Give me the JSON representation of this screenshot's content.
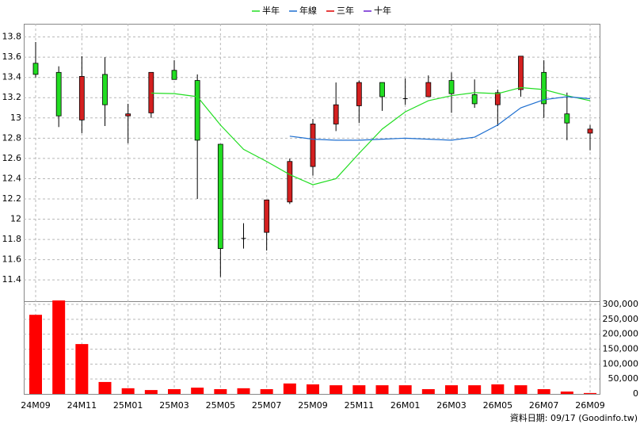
{
  "chart_data": [
    {
      "type": "candlestick",
      "legend": "top",
      "categories": [
        "24M09",
        null,
        "24M11",
        null,
        "25M01",
        null,
        "25M03",
        null,
        "25M05",
        null,
        "25M07",
        null,
        "25M09",
        null,
        "25M11",
        null,
        "26M01",
        null,
        "26M03",
        null,
        "26M05",
        null,
        "26M07",
        null,
        "26M09"
      ],
      "open": [
        13.54,
        13.45,
        12.98,
        13.43,
        13.02,
        13.05,
        13.47,
        13.37,
        12.74,
        11.81,
        11.87,
        12.17,
        12.52,
        12.94,
        13.12,
        13.35,
        13.19,
        13.21,
        13.37,
        13.23,
        13.13,
        13.28,
        13.45,
        13.04,
        12.85
      ],
      "high": [
        13.75,
        13.51,
        13.61,
        13.6,
        13.14,
        13.45,
        13.57,
        13.43,
        12.74,
        11.96,
        12.19,
        12.6,
        12.99,
        13.35,
        13.37,
        13.35,
        13.39,
        13.42,
        13.45,
        13.38,
        13.28,
        13.61,
        13.57,
        13.25,
        12.93
      ],
      "low": [
        13.4,
        12.91,
        12.85,
        12.92,
        12.75,
        13.0,
        13.38,
        12.2,
        11.43,
        11.71,
        11.69,
        12.15,
        12.43,
        12.87,
        12.95,
        13.07,
        13.13,
        13.21,
        13.05,
        13.1,
        12.92,
        13.21,
        13.0,
        12.78,
        12.68
      ],
      "close": [
        13.43,
        13.02,
        13.41,
        13.13,
        13.04,
        13.45,
        13.38,
        12.78,
        11.71,
        11.81,
        12.19,
        12.57,
        12.94,
        13.13,
        13.35,
        13.21,
        13.19,
        13.35,
        13.24,
        13.14,
        13.25,
        13.61,
        13.14,
        12.95,
        12.89
      ],
      "up_color": "#d42020",
      "down_color": "#22dd22",
      "flat_color": "#000000",
      "series": [
        {
          "name": "半年",
          "color": "#22dd22",
          "values": [
            null,
            null,
            null,
            null,
            null,
            13.245,
            13.24,
            13.21,
            12.93,
            12.69,
            12.57,
            12.44,
            12.34,
            12.4,
            12.65,
            12.89,
            13.06,
            13.17,
            13.22,
            13.25,
            13.24,
            13.3,
            13.28,
            13.22,
            13.17
          ]
        },
        {
          "name": "年線",
          "color": "#1e6fd0",
          "values": [
            null,
            null,
            null,
            null,
            null,
            null,
            null,
            null,
            null,
            null,
            null,
            12.82,
            12.79,
            12.78,
            12.78,
            12.79,
            12.8,
            12.79,
            12.78,
            12.81,
            12.93,
            13.1,
            13.18,
            13.21,
            13.19
          ]
        },
        {
          "name": "三年",
          "color": "#dd0000",
          "values": [
            null,
            null,
            null,
            null,
            null,
            null,
            null,
            null,
            null,
            null,
            null,
            null,
            null,
            null,
            null,
            null,
            null,
            null,
            null,
            null,
            null,
            null,
            null,
            null,
            null
          ]
        },
        {
          "name": "十年",
          "color": "#6a1fd0",
          "values": [
            null,
            null,
            null,
            null,
            null,
            null,
            null,
            null,
            null,
            null,
            null,
            null,
            null,
            null,
            null,
            null,
            null,
            null,
            null,
            null,
            null,
            null,
            null,
            null,
            null
          ]
        }
      ],
      "ylim": [
        11.19,
        13.93
      ],
      "yticks": [
        11.4,
        11.6,
        11.8,
        12,
        12.2,
        12.4,
        12.6,
        12.8,
        13,
        13.2,
        13.4,
        13.6,
        13.8
      ],
      "grid": true
    },
    {
      "type": "bar",
      "color": "#ff0000",
      "values": [
        265000,
        313000,
        167000,
        40000,
        19000,
        13000,
        16000,
        21000,
        16000,
        19000,
        16000,
        35000,
        32000,
        29000,
        29000,
        29000,
        29000,
        16000,
        29000,
        29000,
        32000,
        29000,
        16000,
        8000,
        3000
      ],
      "ylim": [
        0,
        310600
      ],
      "yticks": [
        0,
        {
          "value": 50000,
          "label": "50,000"
        },
        {
          "value": 100000,
          "label": "100,000"
        },
        {
          "value": 150000,
          "label": "150,000"
        },
        {
          "value": 200000,
          "label": "200,000"
        },
        {
          "value": 250000,
          "label": "250,000"
        },
        {
          "value": 300000,
          "label": "300,000"
        }
      ],
      "grid": true,
      "note": "資料日期: 09/17 (Goodinfo.tw)"
    }
  ]
}
